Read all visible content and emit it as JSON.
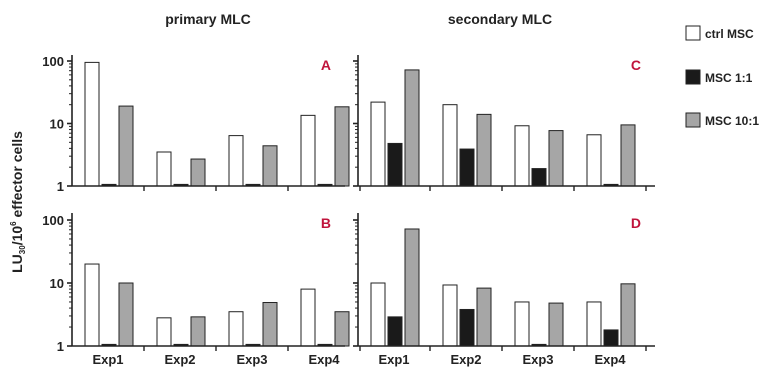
{
  "chart_data": {
    "type": "bar",
    "yscale": "log",
    "ylim": [
      1,
      100
    ],
    "yticks": [
      "1",
      "10",
      "100"
    ],
    "ylabel": {
      "main": "LU",
      "sub": "30",
      "mid": "/10",
      "sup": "6",
      "rest": " effector cells"
    },
    "categories": [
      "Exp1",
      "Exp2",
      "Exp3",
      "Exp4"
    ],
    "column_titles": [
      "primary MLC",
      "secondary MLC"
    ],
    "legend": {
      "placement": "right",
      "entries": [
        {
          "name": "ctrl MSC",
          "color": "#ffffff"
        },
        {
          "name": "MSC 1:1",
          "color": "#1a1a1a"
        },
        {
          "name": "MSC 10:1",
          "color": "#a6a6a6"
        }
      ]
    },
    "panels": [
      {
        "label": "A",
        "values": [
          [
            95,
            1,
            19
          ],
          [
            3.5,
            1,
            2.7
          ],
          [
            6.4,
            1,
            4.4
          ],
          [
            13.5,
            1,
            18.5
          ]
        ]
      },
      {
        "label": "C",
        "values": [
          [
            22,
            4.8,
            72
          ],
          [
            20,
            3.9,
            14
          ],
          [
            9.2,
            1.9,
            7.7
          ],
          [
            6.6,
            1,
            9.5
          ]
        ]
      },
      {
        "label": "B",
        "values": [
          [
            20,
            1,
            10
          ],
          [
            2.8,
            1,
            2.9
          ],
          [
            3.5,
            1,
            4.9
          ],
          [
            8,
            1,
            3.5
          ]
        ]
      },
      {
        "label": "D",
        "values": [
          [
            10,
            2.9,
            72
          ],
          [
            9.3,
            3.8,
            8.3
          ],
          [
            5,
            1,
            4.8
          ],
          [
            5,
            1.8,
            9.7
          ]
        ]
      }
    ],
    "colors": {
      "label": "#c0143c",
      "axis": "#222222"
    },
    "grid": false
  }
}
